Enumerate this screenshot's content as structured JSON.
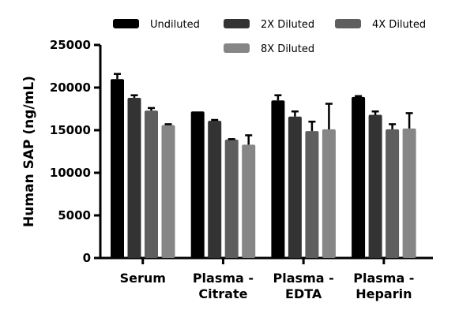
{
  "chart_data": {
    "type": "bar",
    "title": "",
    "xlabel": "",
    "ylabel": "Human SAP (ng/mL)",
    "ylim": [
      0,
      25000
    ],
    "yticks": [
      0,
      5000,
      10000,
      15000,
      20000,
      25000
    ],
    "grid": false,
    "legend_placement": "top",
    "categories": [
      [
        "Serum"
      ],
      [
        "Plasma -",
        "Citrate"
      ],
      [
        "Plasma -",
        "EDTA"
      ],
      [
        "Plasma -",
        "Heparin"
      ]
    ],
    "series": [
      {
        "name": "Undiluted",
        "color": "#000000",
        "values": [
          21000,
          17200,
          18500,
          18900
        ],
        "error": [
          600,
          0,
          600,
          100
        ]
      },
      {
        "name": "2X Diluted",
        "color": "#333333",
        "values": [
          18800,
          16100,
          16600,
          16800
        ],
        "error": [
          300,
          100,
          600,
          400
        ]
      },
      {
        "name": "4X Diluted",
        "color": "#5e5e5e",
        "values": [
          17300,
          13900,
          14900,
          15100
        ],
        "error": [
          300,
          50,
          1100,
          600
        ]
      },
      {
        "name": "8X Diluted",
        "color": "#868686",
        "values": [
          15600,
          13300,
          15100,
          15200
        ],
        "error": [
          100,
          1100,
          3000,
          1800
        ]
      }
    ]
  }
}
